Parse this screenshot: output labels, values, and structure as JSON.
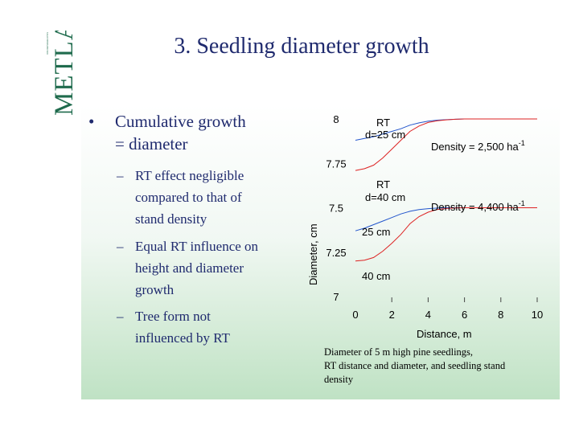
{
  "logo": {
    "text": "METLA",
    "subtext": "FINNISH FOREST RESEARCH INSTITUTE"
  },
  "title": "3. Seedling diameter growth",
  "bullets": {
    "main_marker": "•",
    "main_line1": "Cumulative growth",
    "main_line2": "= diameter",
    "sub_marker": "–",
    "sub": [
      {
        "line1": "RT effect negligible",
        "line2": "compared to that of",
        "line3": "stand density"
      },
      {
        "line1": "Equal RT influence on",
        "line2": "height and diameter",
        "line3": "growth"
      },
      {
        "line1": "Tree form not",
        "line2": "influenced by RT",
        "line3": ""
      }
    ]
  },
  "chart_data": {
    "type": "line",
    "ylabel": "Diameter, cm",
    "xlabel": "Distance, m",
    "xlim": [
      0,
      10
    ],
    "ylim": [
      7,
      8
    ],
    "x_ticks": [
      "0",
      "2",
      "4",
      "6",
      "8",
      "10"
    ],
    "y_ticks": [
      "7",
      "7.25",
      "7.5",
      "7.75",
      "8"
    ],
    "annotations": {
      "rt1": "RT",
      "d1": "d=25 cm",
      "rt2": "RT",
      "d2": "d=40 cm",
      "density1": "Density = 2,500 ha",
      "density2": "Density = 4,400 ha",
      "exponent": "-1",
      "label25": "25 cm",
      "label40": "40 cm"
    },
    "series": [
      {
        "name": "25 cm",
        "color": "#2255cc",
        "group": "2,500",
        "x": [
          0,
          0.5,
          1,
          1.5,
          2,
          2.5,
          3,
          3.5,
          4,
          4.5,
          5,
          5.5,
          6,
          7,
          8,
          9,
          10
        ],
        "y": [
          7.88,
          7.89,
          7.9,
          7.915,
          7.93,
          7.945,
          7.965,
          7.978,
          7.988,
          7.993,
          7.996,
          7.998,
          8.0,
          8.0,
          8.0,
          8.0,
          8.0
        ]
      },
      {
        "name": "40 cm",
        "color": "#dd2222",
        "group": "2,500",
        "x": [
          0,
          0.5,
          1,
          1.5,
          2,
          2.5,
          3,
          3.5,
          4,
          4.5,
          5,
          5.5,
          6,
          7,
          8,
          9,
          10
        ],
        "y": [
          7.71,
          7.72,
          7.74,
          7.78,
          7.83,
          7.88,
          7.93,
          7.96,
          7.98,
          7.99,
          7.995,
          7.998,
          8.0,
          8.0,
          8.0,
          8.0,
          8.0
        ]
      },
      {
        "name": "25 cm",
        "color": "#2255cc",
        "group": "4,400",
        "x": [
          0,
          0.5,
          1,
          1.5,
          2,
          2.5,
          3,
          3.5,
          4,
          4.5,
          5,
          5.5,
          6,
          7,
          8,
          9,
          10
        ],
        "y": [
          7.37,
          7.385,
          7.405,
          7.425,
          7.445,
          7.465,
          7.48,
          7.49,
          7.495,
          7.498,
          7.5,
          7.5,
          7.5,
          7.5,
          7.5,
          7.5,
          7.5
        ]
      },
      {
        "name": "40 cm",
        "color": "#dd2222",
        "group": "4,400",
        "x": [
          0,
          0.5,
          1,
          1.5,
          2,
          2.5,
          3,
          3.5,
          4,
          4.5,
          5,
          5.5,
          6,
          7,
          8,
          9,
          10
        ],
        "y": [
          7.2,
          7.205,
          7.22,
          7.255,
          7.3,
          7.35,
          7.41,
          7.45,
          7.475,
          7.49,
          7.496,
          7.499,
          7.5,
          7.5,
          7.5,
          7.5,
          7.5
        ]
      }
    ]
  },
  "caption": {
    "line1": "Diameter of 5 m high pine seedlings,",
    "line2": "RT distance and diameter, and seedling stand",
    "line3": "density"
  }
}
